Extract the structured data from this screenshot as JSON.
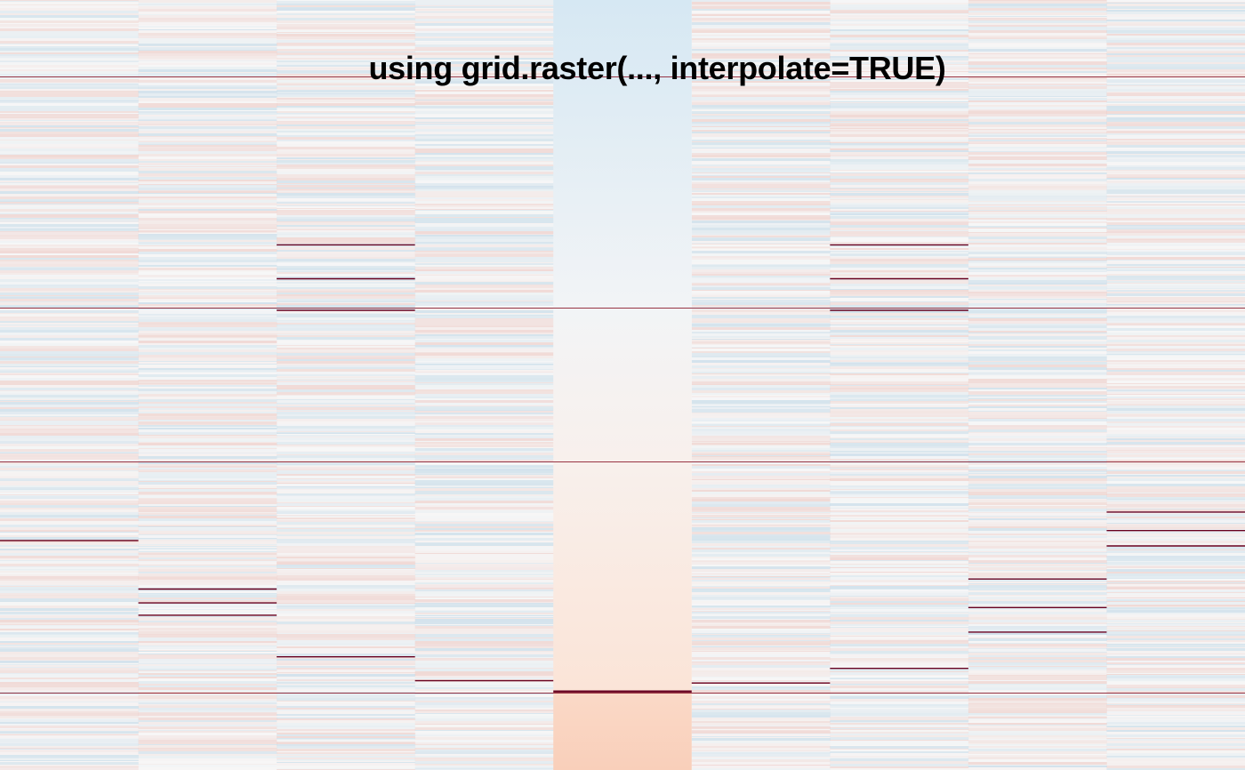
{
  "title": "using grid.raster(..., interpolate=TRUE)",
  "colors": {
    "background": "#f7f7f7",
    "low": "#4393c3",
    "mid": "#f7f7f7",
    "high": "#d6604d",
    "extreme": "#67001f"
  },
  "chart_data": {
    "type": "heatmap",
    "title": "using grid.raster(..., interpolate=TRUE)",
    "xlabel": "",
    "ylabel": "",
    "n_columns": 9,
    "value_range": [
      -1,
      1
    ],
    "colormap": "diverging blue-white-red",
    "sorted_column": 5,
    "sorted_column_range": [
      -0.45,
      0.55
    ],
    "full_width_lines": [
      0.1,
      0.4,
      0.6,
      0.9
    ],
    "column_lines": [
      {
        "column": 1,
        "rows": [
          0.702
        ]
      },
      {
        "column": 2,
        "rows": [
          0.765,
          0.783,
          0.799
        ]
      },
      {
        "column": 3,
        "rows": [
          0.318,
          0.362,
          0.403,
          0.853
        ]
      },
      {
        "column": 4,
        "rows": [
          0.884
        ]
      },
      {
        "column": 5,
        "rows": [
          0.898
        ]
      },
      {
        "column": 6,
        "rows": [
          0.887
        ]
      },
      {
        "column": 7,
        "rows": [
          0.318,
          0.362,
          0.403,
          0.868
        ]
      },
      {
        "column": 8,
        "rows": [
          0.752,
          0.789,
          0.821
        ]
      },
      {
        "column": 9,
        "rows": [
          0.665,
          0.689,
          0.709
        ]
      }
    ],
    "grid": false,
    "legend": "none"
  }
}
